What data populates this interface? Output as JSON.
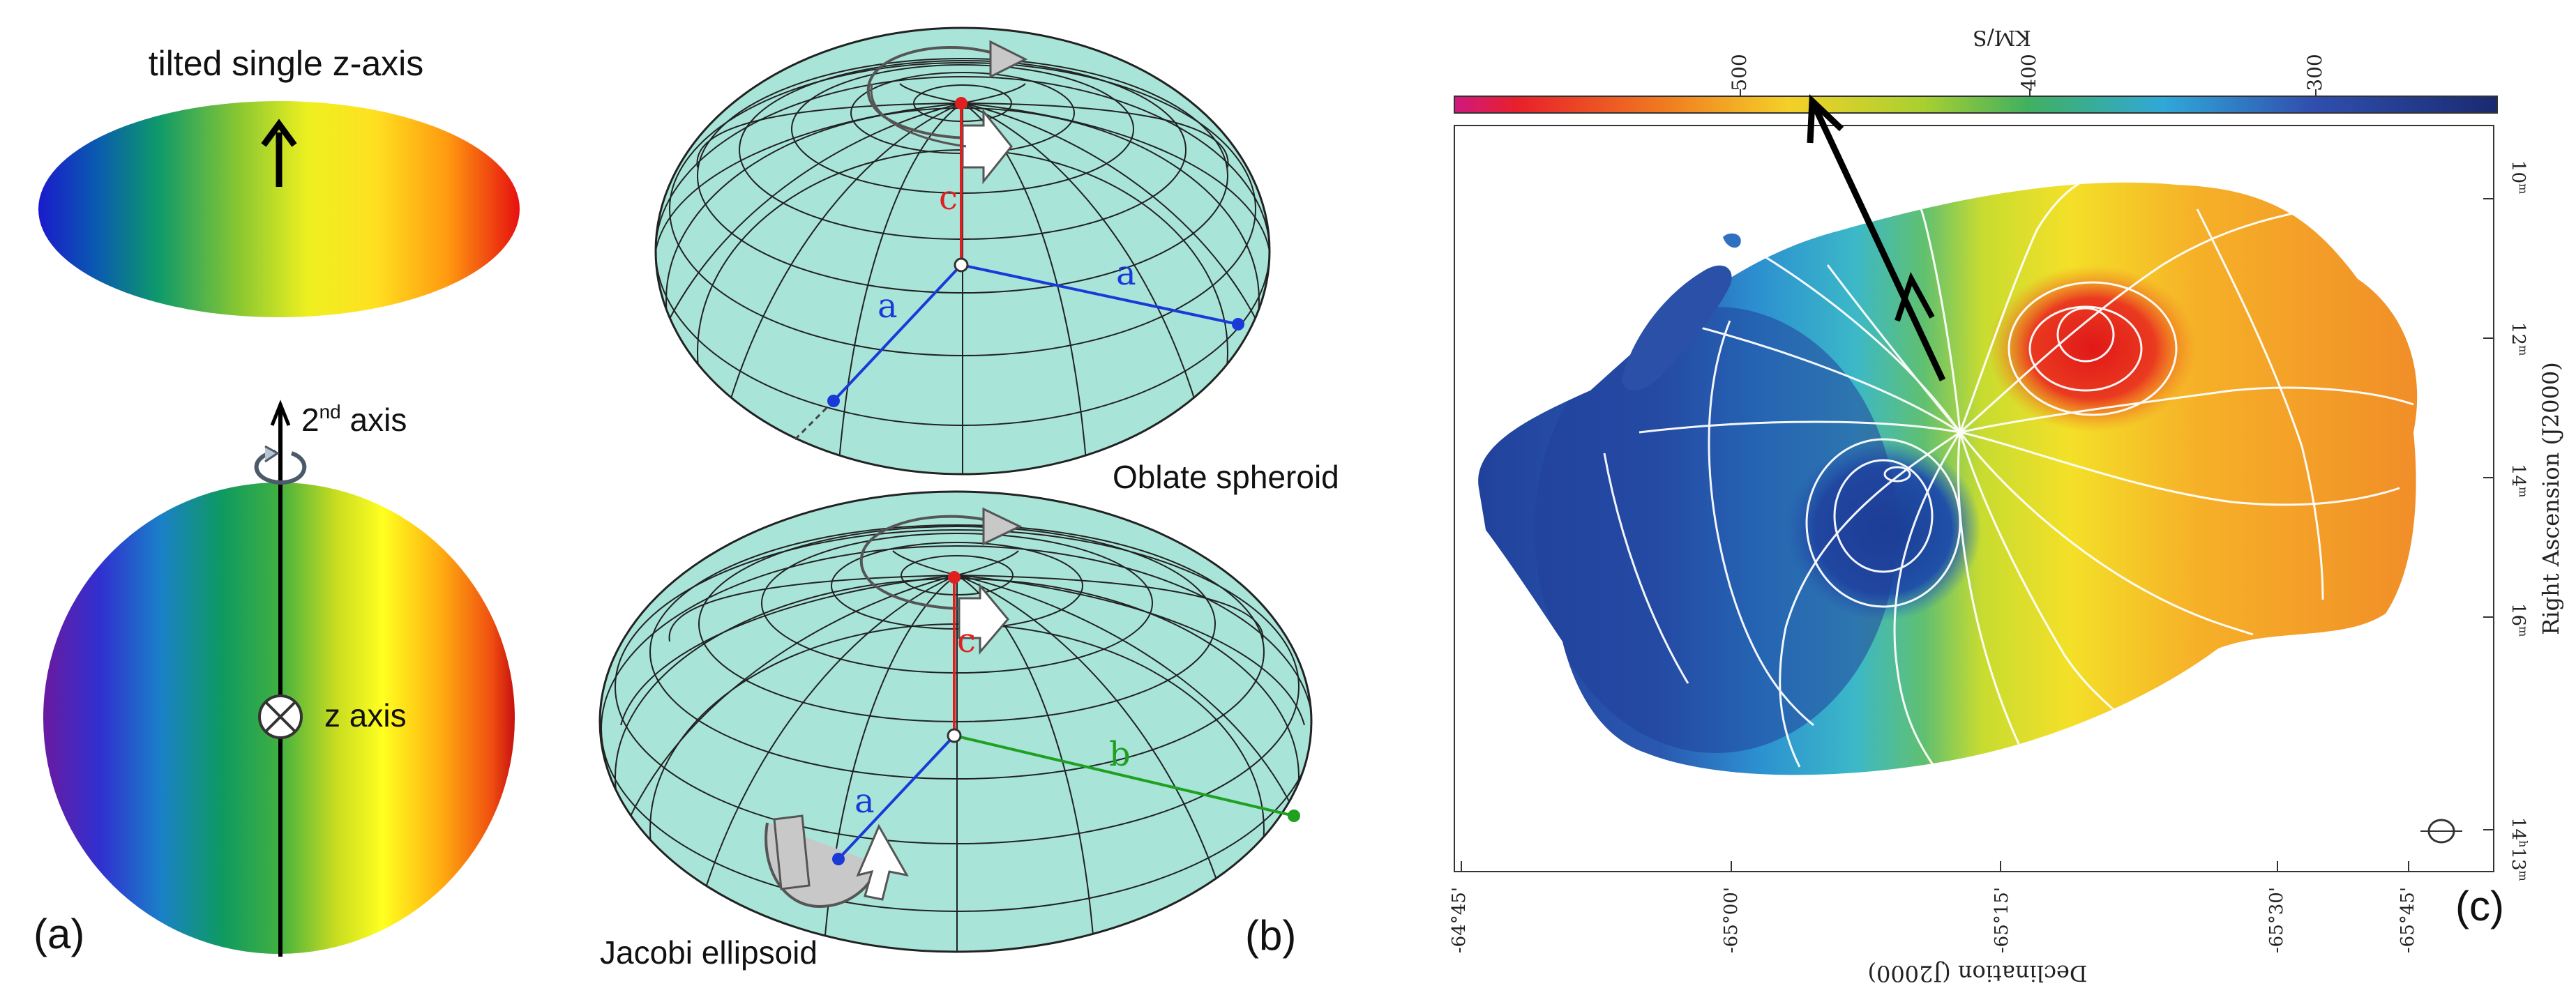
{
  "panel_a": {
    "top_title": "tilted single z-axis",
    "second_axis_label": "2",
    "second_axis_superscript": "nd",
    "second_axis_label_suffix": " axis",
    "z_axis_label": "z axis",
    "panel_letter": "(a)",
    "rainbow_colors": [
      "#1a1acc",
      "#0fa0a0",
      "#20a040",
      "#c8dc28",
      "#ffff20",
      "#ffa010",
      "#e61010"
    ],
    "icons": [
      "up-arrow-icon",
      "rotation-arrow-icon",
      "into-page-cross-icon"
    ]
  },
  "panel_b": {
    "oblate": {
      "caption": "Oblate spheroid",
      "axis_c": "c",
      "axis_a_left": "a",
      "axis_a_right": "a",
      "body_color": "#a8e4d8"
    },
    "jacobi": {
      "caption": "Jacobi ellipsoid",
      "axis_c": "c",
      "axis_a": "a",
      "axis_b": "b",
      "body_color": "#a8e4d8"
    },
    "axis_colors": {
      "c": "#e02020",
      "a": "#1a3ad8",
      "b": "#20a020"
    },
    "panel_letter": "(b)"
  },
  "panel_c": {
    "colorbar_unit": "KM/S",
    "colorbar_ticks": [
      "500",
      "400",
      "300"
    ],
    "colorbar_colors": [
      "#d01880",
      "#e8202a",
      "#f07a20",
      "#f4d028",
      "#a8d030",
      "#40b060",
      "#30a8d8",
      "#3050b0",
      "#1a2a70"
    ],
    "ra_axis_label": "Right Ascension (J2000)",
    "ra_ticks": [
      "10",
      "12",
      "14",
      "16",
      "14"
    ],
    "ra_tick_superscripts": [
      "m",
      "m",
      "m",
      "m",
      "h"
    ],
    "ra_last_tick_suffix": "13",
    "ra_last_tick_superscript": "m",
    "dec_axis_label": "Declination (J2000)",
    "dec_ticks": [
      "-64°45'",
      "-65°00'",
      "-65°15'",
      "-65°30'",
      "-65°45'"
    ],
    "panel_letter": "(c)"
  }
}
